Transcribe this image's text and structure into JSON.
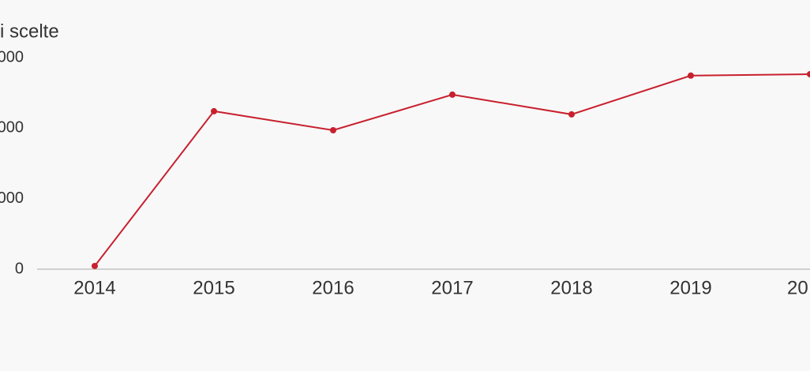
{
  "chart_data": {
    "type": "line",
    "title": "i scelte",
    "categories": [
      "2014",
      "2015",
      "2016",
      "2017",
      "2018",
      "2019",
      "20"
    ],
    "series": [
      {
        "color": "#c8202e",
        "values": [
          45,
          2240,
          1970,
          2475,
          2195,
          2745,
          2765
        ]
      }
    ],
    "ylim": [
      0,
      3000
    ],
    "yticks": [
      0,
      {
        "value": 1000,
        "label": "000"
      },
      {
        "value": 2000,
        "label": "000"
      },
      {
        "value": 3000,
        "label": "000"
      }
    ]
  }
}
